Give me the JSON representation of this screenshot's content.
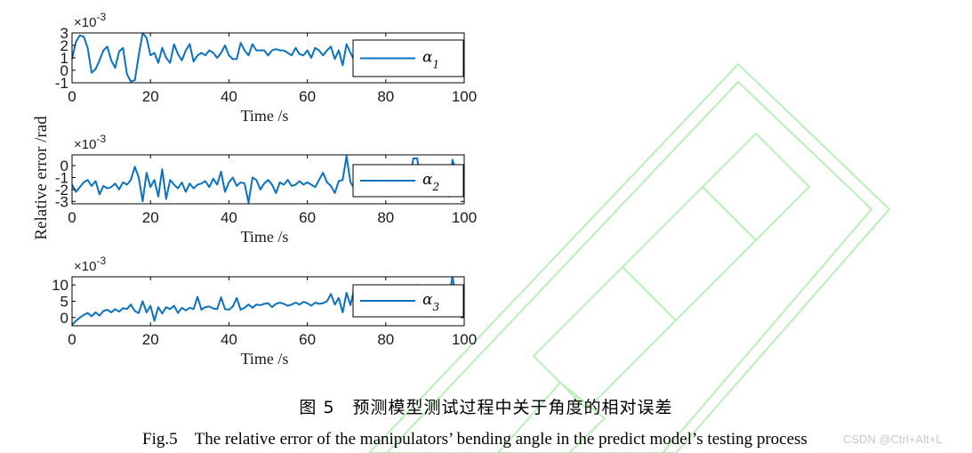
{
  "figure": {
    "caption_cn": "图 5　预测模型测试过程中关于角度的相对误差",
    "caption_en": "Fig.5　The relative error of the manipulators’ bending angle in the predict model’s testing process",
    "credit": "CSDN @Ctrl+Alt+L",
    "ylabel": "Relative error /rad",
    "series_color": "#0b72bd"
  },
  "chart_data": [
    {
      "type": "line",
      "xlabel": "Time /s",
      "exponent_label": "×10",
      "exponent": "-3",
      "xlim": [
        0,
        100
      ],
      "ylim": [
        -1,
        3
      ],
      "xticks": [
        0,
        20,
        40,
        60,
        80,
        100
      ],
      "yticks": [
        -1,
        0,
        1,
        2,
        3
      ],
      "legend": {
        "symbol": "α",
        "subscript": "1",
        "position": "right"
      },
      "series": [
        {
          "x": [
            0,
            1,
            2,
            3,
            4,
            5,
            6,
            7,
            8,
            9,
            10,
            11,
            12,
            13,
            14,
            15,
            16,
            17,
            18,
            19,
            20,
            21,
            22,
            23,
            24,
            25,
            26,
            27,
            28,
            29,
            30,
            31,
            32,
            33,
            34,
            35,
            36,
            37,
            38,
            39,
            40,
            41,
            42,
            43,
            44,
            45,
            46,
            47,
            48,
            49,
            50,
            51,
            52,
            53,
            54,
            55,
            56,
            57,
            58,
            59,
            60,
            61,
            62,
            63,
            64,
            65,
            66,
            67,
            68,
            69,
            70,
            71,
            72,
            73,
            74,
            75,
            76,
            77,
            78,
            79,
            80,
            81,
            82,
            83,
            84,
            85,
            86,
            87,
            88,
            89,
            90,
            91,
            92,
            93,
            94,
            95,
            96,
            97,
            98,
            99,
            100
          ],
          "y": [
            0.9,
            2.3,
            2.8,
            2.7,
            1.8,
            -0.2,
            0.1,
            0.8,
            1.6,
            1.9,
            0.8,
            0.2,
            1.5,
            1.8,
            -0.3,
            -0.9,
            -0.8,
            1.2,
            3.0,
            2.6,
            1.2,
            1.4,
            0.6,
            1.8,
            1.0,
            0.6,
            2.1,
            1.3,
            0.8,
            1.6,
            2.1,
            0.7,
            1.2,
            1.4,
            1.2,
            1.6,
            1.4,
            1.0,
            1.4,
            2.0,
            1.2,
            0.9,
            0.9,
            2.2,
            1.6,
            1.2,
            2.1,
            1.6,
            1.6,
            1.6,
            1.2,
            1.6,
            1.7,
            1.6,
            1.6,
            1.4,
            1.2,
            1.8,
            1.3,
            1.2,
            1.6,
            1.0,
            1.8,
            1.6,
            1.2,
            1.6,
            1.9,
            0.9,
            1.6,
            0.4,
            2.1,
            1.4,
            0.8,
            1.4,
            1.6,
            1.5,
            1.6,
            1.7,
            1.4,
            1.5,
            1.6,
            1.5,
            1.6,
            1.6,
            1.4,
            1.5,
            1.6,
            1.5,
            1.5,
            1.6,
            1.5,
            1.4,
            1.6,
            1.5,
            1.4,
            1.5,
            1.6,
            1.1,
            1.2,
            1.4,
            2.1
          ]
        }
      ]
    },
    {
      "type": "line",
      "xlabel": "Time /s",
      "exponent_label": "×10",
      "exponent": "-3",
      "xlim": [
        0,
        100
      ],
      "ylim": [
        -3.2,
        0.9
      ],
      "xticks": [
        0,
        20,
        40,
        60,
        80,
        100
      ],
      "yticks": [
        -3,
        -2,
        -1,
        0
      ],
      "legend": {
        "symbol": "α",
        "subscript": "2",
        "position": "right"
      },
      "series": [
        {
          "x": [
            0,
            1,
            2,
            3,
            4,
            5,
            6,
            7,
            8,
            9,
            10,
            11,
            12,
            13,
            14,
            15,
            16,
            17,
            18,
            19,
            20,
            21,
            22,
            23,
            24,
            25,
            26,
            27,
            28,
            29,
            30,
            31,
            32,
            33,
            34,
            35,
            36,
            37,
            38,
            39,
            40,
            41,
            42,
            43,
            44,
            45,
            46,
            47,
            48,
            49,
            50,
            51,
            52,
            53,
            54,
            55,
            56,
            57,
            58,
            59,
            60,
            61,
            62,
            63,
            64,
            65,
            66,
            67,
            68,
            69,
            70,
            71,
            72,
            73,
            74,
            75,
            76,
            77,
            78,
            79,
            80,
            81,
            82,
            83,
            84,
            85,
            86,
            87,
            88,
            89,
            90,
            91,
            92,
            93,
            94,
            95,
            96,
            97,
            98,
            99,
            100
          ],
          "y": [
            -1.6,
            -2.2,
            -1.8,
            -1.4,
            -1.2,
            -1.7,
            -1.3,
            -2.4,
            -1.7,
            -1.9,
            -1.8,
            -1.5,
            -2.0,
            -1.4,
            -1.6,
            -1.2,
            -0.1,
            -1.0,
            -3.0,
            -0.6,
            -1.8,
            -1.2,
            -2.6,
            -0.3,
            -2.8,
            -1.2,
            -1.6,
            -1.9,
            -1.4,
            -2.2,
            -1.5,
            -1.9,
            -1.6,
            -1.5,
            -1.3,
            -1.8,
            -1.1,
            -1.6,
            -0.5,
            -2.2,
            -1.4,
            -1.0,
            -1.7,
            -1.4,
            -1.5,
            -3.1,
            -1.0,
            -1.2,
            -2.0,
            -1.5,
            -1.2,
            -1.6,
            -2.3,
            -1.4,
            -1.6,
            -1.2,
            -1.7,
            -1.6,
            -1.3,
            -1.6,
            -1.4,
            -1.6,
            -1.8,
            -1.2,
            -0.6,
            -1.4,
            -1.7,
            -2.3,
            -1.3,
            -1.2,
            0.8,
            -1.4,
            -1.9,
            -1.5,
            -1.6,
            -1.4,
            -1.6,
            -1.5,
            -1.6,
            -1.4,
            -1.5,
            -1.6,
            -1.5,
            -1.4,
            -1.6,
            -1.5,
            -1.4,
            0.6,
            0.6,
            -1.5,
            -1.4,
            -1.6,
            -1.5,
            -1.4,
            -1.6,
            -1.5,
            -2.6,
            0.5,
            -0.6,
            -0.7,
            -1.3
          ]
        }
      ]
    },
    {
      "type": "line",
      "xlabel": "Time /s",
      "exponent_label": "×10",
      "exponent": "-3",
      "xlim": [
        0,
        100
      ],
      "ylim": [
        -2.5,
        12.5
      ],
      "xticks": [
        0,
        20,
        40,
        60,
        80,
        100
      ],
      "yticks": [
        0,
        5,
        10
      ],
      "legend": {
        "symbol": "α",
        "subscript": "3",
        "position": "right"
      },
      "series": [
        {
          "x": [
            0,
            1,
            2,
            3,
            4,
            5,
            6,
            7,
            8,
            9,
            10,
            11,
            12,
            13,
            14,
            15,
            16,
            17,
            18,
            19,
            20,
            21,
            22,
            23,
            24,
            25,
            26,
            27,
            28,
            29,
            30,
            31,
            32,
            33,
            34,
            35,
            36,
            37,
            38,
            39,
            40,
            41,
            42,
            43,
            44,
            45,
            46,
            47,
            48,
            49,
            50,
            51,
            52,
            53,
            54,
            55,
            56,
            57,
            58,
            59,
            60,
            61,
            62,
            63,
            64,
            65,
            66,
            67,
            68,
            69,
            70,
            71,
            72,
            73,
            74,
            75,
            76,
            77,
            78,
            79,
            80,
            81,
            82,
            83,
            84,
            85,
            86,
            87,
            88,
            89,
            90,
            91,
            92,
            93,
            94,
            95,
            96,
            97,
            98,
            99,
            100
          ],
          "y": [
            -2.2,
            -1.0,
            0.0,
            0.8,
            1.4,
            0.4,
            1.6,
            0.6,
            2.0,
            2.4,
            1.6,
            2.6,
            1.8,
            2.9,
            2.6,
            4.0,
            2.0,
            1.4,
            5.0,
            1.6,
            3.6,
            -1.0,
            3.2,
            1.2,
            3.2,
            2.6,
            3.6,
            1.4,
            3.0,
            2.2,
            3.0,
            2.6,
            6.4,
            2.4,
            3.2,
            3.4,
            2.8,
            2.6,
            6.2,
            2.6,
            2.4,
            3.4,
            6.0,
            2.4,
            3.0,
            4.0,
            3.0,
            4.0,
            3.8,
            4.2,
            4.4,
            3.2,
            4.2,
            4.6,
            4.2,
            3.6,
            4.0,
            4.6,
            4.0,
            4.8,
            4.4,
            3.6,
            4.6,
            4.2,
            4.4,
            5.0,
            7.2,
            4.0,
            6.0,
            1.6,
            7.6,
            3.8,
            9.2,
            4.0,
            4.6,
            5.0,
            4.4,
            4.8,
            5.2,
            4.6,
            5.0,
            4.8,
            5.2,
            4.6,
            5.0,
            4.8,
            5.2,
            4.6,
            10.0,
            5.0,
            4.8,
            5.2,
            4.6,
            5.0,
            4.8,
            5.2,
            4.6,
            13.0,
            3.4,
            5.2,
            10.0
          ]
        }
      ]
    }
  ]
}
